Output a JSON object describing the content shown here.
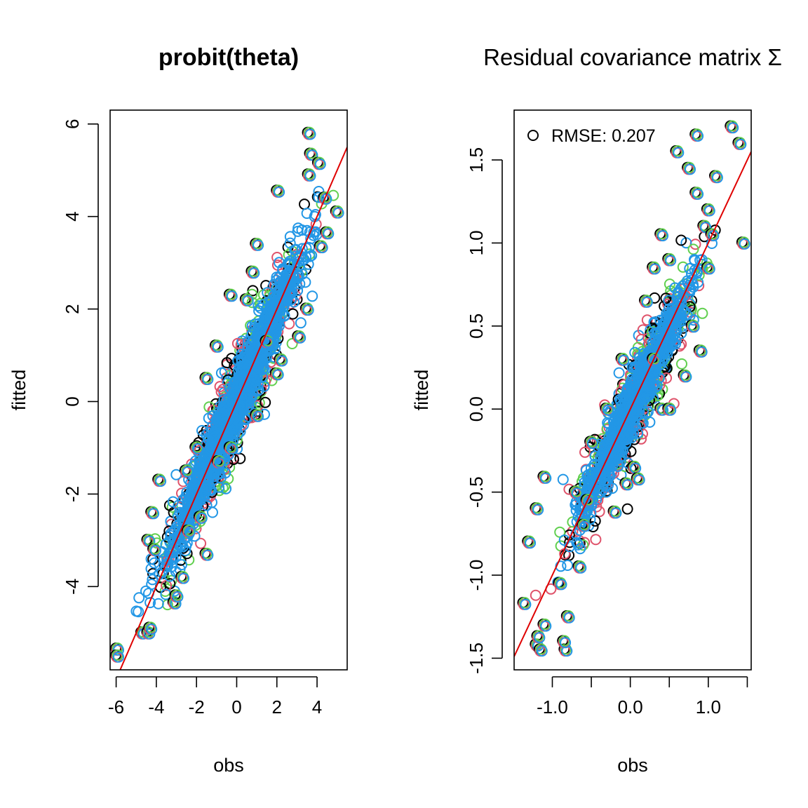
{
  "chart_data": [
    {
      "type": "scatter",
      "title": "probit(theta)",
      "xlabel": "obs",
      "ylabel": "fitted",
      "xlim": [
        -6.3,
        5.5
      ],
      "ylim": [
        -5.8,
        6.3
      ],
      "xticks": [
        "-6",
        "-4",
        "-2",
        "0",
        "2",
        "4"
      ],
      "yticks": [
        "-4",
        "-2",
        "0",
        "2",
        "4",
        "6"
      ],
      "grid": false,
      "reference_line": {
        "intercept": 0,
        "slope": 1,
        "color": "#DF0000"
      },
      "series_colors": [
        "#000000",
        "#DF536B",
        "#61D04F",
        "#2297E6"
      ],
      "points": [
        [
          -5.95,
          -5.35
        ],
        [
          -5.95,
          -5.5
        ],
        [
          -4.7,
          -5.0
        ],
        [
          -4.4,
          -5.0
        ],
        [
          -4.3,
          -4.9
        ],
        [
          -4.4,
          -3.0
        ],
        [
          -4.1,
          -3.2
        ],
        [
          -3.85,
          -1.7
        ],
        [
          -4.2,
          -2.4
        ],
        [
          -3.1,
          -4.35
        ],
        [
          -1.5,
          -3.3
        ],
        [
          -1.8,
          -2.5
        ],
        [
          -0.9,
          -1.3
        ],
        [
          -0.3,
          -1.0
        ],
        [
          1.0,
          -0.3
        ],
        [
          1.5,
          1.3
        ],
        [
          2.0,
          0.6
        ],
        [
          -1.5,
          0.5
        ],
        [
          -1.0,
          1.2
        ],
        [
          -0.3,
          2.3
        ],
        [
          0.5,
          2.2
        ],
        [
          1.0,
          3.4
        ],
        [
          0.8,
          2.8
        ],
        [
          2.05,
          4.55
        ],
        [
          3.6,
          5.8
        ],
        [
          3.7,
          5.35
        ],
        [
          4.1,
          5.15
        ],
        [
          3.6,
          4.9
        ],
        [
          4.4,
          4.4
        ],
        [
          5.0,
          4.1
        ],
        [
          4.5,
          3.65
        ],
        [
          4.2,
          3.35
        ],
        [
          3.5,
          2.0
        ],
        [
          3.1,
          1.4
        ],
        [
          2.2,
          0.9
        ],
        [
          -2.4,
          -2.8
        ],
        [
          -2.7,
          -3.8
        ],
        [
          -3.0,
          -4.2
        ],
        [
          -2.5,
          -1.5
        ],
        [
          -2.0,
          -1.0
        ]
      ]
    },
    {
      "type": "scatter",
      "title": "Residual covariance matrix Σ",
      "xlabel": "obs",
      "ylabel": "fitted",
      "xlim": [
        -1.49,
        1.55
      ],
      "ylim": [
        -1.57,
        1.8
      ],
      "xticks": [
        "-1.0",
        "0.0",
        "1.0"
      ],
      "xminor_ticks": [
        -1.0,
        -0.5,
        0.0,
        0.5,
        1.0,
        1.5
      ],
      "yticks": [
        "-1.5",
        "-1.0",
        "-0.5",
        "0.0",
        "0.5",
        "1.0",
        "1.5"
      ],
      "grid": false,
      "legend_position": "top-left",
      "legend_label": "RMSE:  0.207",
      "reference_line": {
        "intercept": 0,
        "slope": 1,
        "color": "#DF0000"
      },
      "series_colors": [
        "#000000",
        "#DF536B",
        "#61D04F",
        "#2297E6"
      ],
      "points": [
        [
          -1.36,
          -1.17
        ],
        [
          -1.2,
          -1.42
        ],
        [
          -1.15,
          -1.45
        ],
        [
          -1.18,
          -1.37
        ],
        [
          -0.83,
          -1.45
        ],
        [
          -0.85,
          -1.4
        ],
        [
          -1.3,
          -0.8
        ],
        [
          -1.2,
          -0.6
        ],
        [
          -1.1,
          -0.41
        ],
        [
          -1.1,
          -1.3
        ],
        [
          -0.8,
          -1.25
        ],
        [
          -0.9,
          -1.05
        ],
        [
          -0.6,
          -0.7
        ],
        [
          -0.55,
          -0.55
        ],
        [
          -0.2,
          -0.62
        ],
        [
          -0.05,
          -0.45
        ],
        [
          0.05,
          -0.35
        ],
        [
          0.1,
          -0.42
        ],
        [
          -0.5,
          -0.2
        ],
        [
          -0.3,
          0.0
        ],
        [
          0.3,
          0.3
        ],
        [
          0.4,
          0.0
        ],
        [
          0.5,
          0.0
        ],
        [
          0.7,
          0.2
        ],
        [
          0.9,
          0.35
        ],
        [
          0.8,
          0.5
        ],
        [
          0.5,
          0.9
        ],
        [
          0.4,
          1.05
        ],
        [
          0.3,
          0.85
        ],
        [
          0.6,
          1.55
        ],
        [
          0.75,
          1.45
        ],
        [
          0.85,
          1.3
        ],
        [
          0.95,
          1.1
        ],
        [
          1.0,
          1.2
        ],
        [
          1.05,
          1.05
        ],
        [
          1.0,
          0.85
        ],
        [
          0.85,
          1.65
        ],
        [
          1.3,
          1.7
        ],
        [
          1.4,
          1.6
        ],
        [
          1.45,
          1.0
        ],
        [
          1.1,
          1.4
        ],
        [
          0.2,
          0.65
        ],
        [
          -0.1,
          0.3
        ],
        [
          -0.65,
          -0.95
        ],
        [
          -0.7,
          -0.5
        ]
      ]
    }
  ]
}
